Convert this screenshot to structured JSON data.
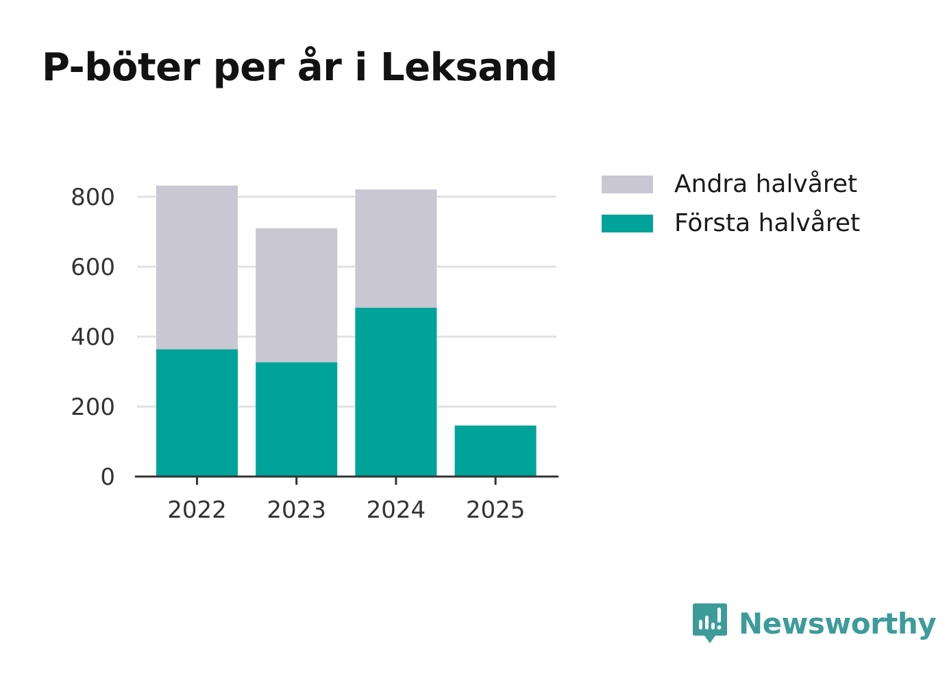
{
  "colors": {
    "first_half": "#00A39A",
    "second_half": "#C8C7D2",
    "grid": "#E2E2E2",
    "axis": "#333333",
    "brand": "#3D9C9A"
  },
  "chart_data": {
    "type": "bar",
    "stacked": true,
    "title": "P-böter per år i Leksand",
    "categories": [
      "2022",
      "2023",
      "2024",
      "2025"
    ],
    "series": [
      {
        "name": "Första halvåret",
        "values": [
          364,
          327,
          483,
          146
        ]
      },
      {
        "name": "Andra halvåret",
        "values": [
          468,
          383,
          338,
          0
        ]
      }
    ],
    "xlabel": "",
    "ylabel": "",
    "ylim": [
      0,
      800
    ],
    "yticks": [
      0,
      200,
      400,
      600,
      800
    ],
    "grid": true,
    "legend": "top-right"
  },
  "legend": {
    "items": [
      {
        "label": "Andra halvåret",
        "color_key": "second_half"
      },
      {
        "label": "Första halvåret",
        "color_key": "first_half"
      }
    ]
  },
  "brand": {
    "name": "Newsworthy",
    "icon": "newsworthy-logo-icon"
  }
}
